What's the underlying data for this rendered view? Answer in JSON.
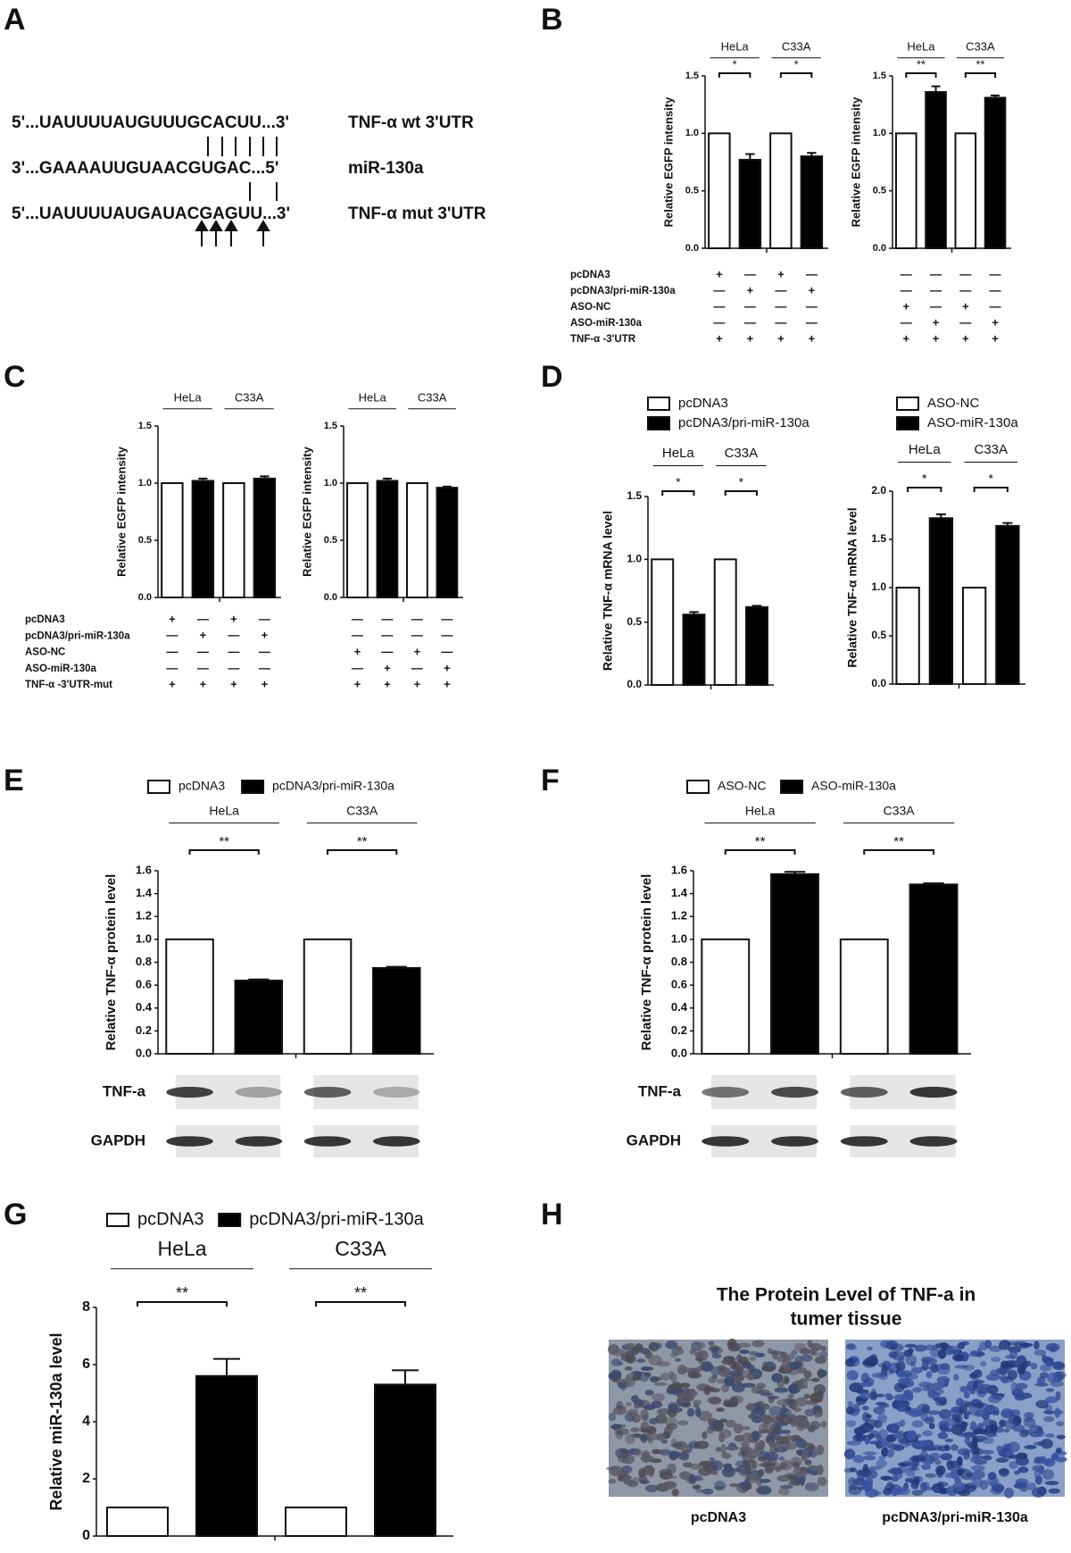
{
  "panel_labels": [
    "A",
    "B",
    "C",
    "D",
    "E",
    "F",
    "G",
    "H"
  ],
  "panel_a": {
    "rows": [
      {
        "sequence": "5'...UAUUUUAUGUUUGCACUU...3'",
        "label": "TNF-α wt 3'UTR"
      },
      {
        "sequence": "3'...GAAAAUUGUAACGUGAC...5'",
        "label": "miR-130a"
      },
      {
        "sequence": "5'...UAUUUUAUGAUACGAGUU...3'",
        "label": "TNF-α mut 3'UTR"
      }
    ]
  },
  "chart_data": [
    {
      "type": "bar",
      "ylabel": "Relative EGFP intensity",
      "groups": [
        "HeLa",
        "C33A"
      ],
      "series": [
        {
          "color": "#ffffff",
          "values": [
            1.0,
            1.0
          ]
        },
        {
          "color": "#000000",
          "values": [
            0.77,
            0.8
          ],
          "errors": [
            0.05,
            0.03
          ]
        }
      ],
      "sig": [
        "*",
        "*"
      ],
      "ylim": [
        0,
        1.5
      ],
      "yticks": [
        {
          "value": 0,
          "label": "0.0"
        },
        {
          "value": 0.5,
          "label": "0.5"
        },
        {
          "value": 1,
          "label": "1.0"
        },
        {
          "value": 1.5,
          "label": "1.5"
        }
      ],
      "condition_labels": [
        "pcDNA3",
        "pcDNA3/pri-miR-130a",
        "ASO-NC",
        "ASO-miR-130a",
        "TNF-α -3'UTR"
      ],
      "conditions": [
        [
          "+",
          "—",
          "+",
          "—"
        ],
        [
          "—",
          "+",
          "—",
          "+"
        ],
        [
          "—",
          "—",
          "—",
          "—"
        ],
        [
          "—",
          "—",
          "—",
          "—"
        ],
        [
          "+",
          "+",
          "+",
          "+"
        ]
      ]
    },
    {
      "type": "bar",
      "ylabel": "Relative EGFP intensity",
      "groups": [
        "HeLa",
        "C33A"
      ],
      "series": [
        {
          "color": "#ffffff",
          "values": [
            1.0,
            1.0
          ]
        },
        {
          "color": "#000000",
          "values": [
            1.36,
            1.31
          ],
          "errors": [
            0.05,
            0.02
          ]
        }
      ],
      "sig": [
        "**",
        "**"
      ],
      "ylim": [
        0,
        1.5
      ],
      "yticks": [
        {
          "value": 0,
          "label": "0.0"
        },
        {
          "value": 0.5,
          "label": "0.5"
        },
        {
          "value": 1,
          "label": "1.0"
        },
        {
          "value": 1.5,
          "label": "1.5"
        }
      ],
      "conditions": [
        [
          "—",
          "—",
          "—",
          "—"
        ],
        [
          "—",
          "—",
          "—",
          "—"
        ],
        [
          "+",
          "—",
          "+",
          "—"
        ],
        [
          "—",
          "+",
          "—",
          "+"
        ],
        [
          "+",
          "+",
          "+",
          "+"
        ]
      ]
    },
    {
      "type": "bar",
      "ylabel": "Relative EGFP intensity",
      "groups": [
        "HeLa",
        "C33A"
      ],
      "series": [
        {
          "color": "#ffffff",
          "values": [
            1.0,
            1.0
          ]
        },
        {
          "color": "#000000",
          "values": [
            1.02,
            1.04
          ],
          "errors": [
            0.02,
            0.02
          ]
        }
      ],
      "ylim": [
        0,
        1.5
      ],
      "yticks": [
        {
          "value": 0,
          "label": "0.0"
        },
        {
          "value": 0.5,
          "label": "0.5"
        },
        {
          "value": 1,
          "label": "1.0"
        },
        {
          "value": 1.5,
          "label": "1.5"
        }
      ],
      "condition_labels": [
        "pcDNA3",
        "pcDNA3/pri-miR-130a",
        "ASO-NC",
        "ASO-miR-130a",
        "TNF-α -3'UTR-mut"
      ],
      "conditions": [
        [
          "+",
          "—",
          "+",
          "—"
        ],
        [
          "—",
          "+",
          "—",
          "+"
        ],
        [
          "—",
          "—",
          "—",
          "—"
        ],
        [
          "—",
          "—",
          "—",
          "—"
        ],
        [
          "+",
          "+",
          "+",
          "+"
        ]
      ]
    },
    {
      "type": "bar",
      "ylabel": "Relative EGFP intensity",
      "groups": [
        "HeLa",
        "C33A"
      ],
      "series": [
        {
          "color": "#ffffff",
          "values": [
            1.0,
            1.0
          ]
        },
        {
          "color": "#000000",
          "values": [
            1.02,
            0.96
          ],
          "errors": [
            0.02,
            0.01
          ]
        }
      ],
      "ylim": [
        0,
        1.5
      ],
      "yticks": [
        {
          "value": 0,
          "label": "0.0"
        },
        {
          "value": 0.5,
          "label": "0.5"
        },
        {
          "value": 1,
          "label": "1.0"
        },
        {
          "value": 1.5,
          "label": "1.5"
        }
      ],
      "conditions": [
        [
          "—",
          "—",
          "—",
          "—"
        ],
        [
          "—",
          "—",
          "—",
          "—"
        ],
        [
          "+",
          "—",
          "+",
          "—"
        ],
        [
          "—",
          "+",
          "—",
          "+"
        ],
        [
          "+",
          "+",
          "+",
          "+"
        ]
      ]
    },
    {
      "type": "bar",
      "ylabel": "Relative TNF-α  mRNA level",
      "groups": [
        "HeLa",
        "C33A"
      ],
      "series": [
        {
          "name": "pcDNA3",
          "color": "#ffffff",
          "values": [
            1.0,
            1.0
          ]
        },
        {
          "name": "pcDNA3/pri-miR-130a",
          "color": "#000000",
          "values": [
            0.56,
            0.62
          ],
          "errors": [
            0.02,
            0.01
          ]
        }
      ],
      "sig": [
        "*",
        "*"
      ],
      "ylim": [
        0,
        1.5
      ],
      "legend": "top-left-stacked",
      "yticks": [
        {
          "value": 0,
          "label": "0.0"
        },
        {
          "value": 0.5,
          "label": "0.5"
        },
        {
          "value": 1,
          "label": "1.0"
        },
        {
          "value": 1.5,
          "label": "1.5"
        }
      ]
    },
    {
      "type": "bar",
      "ylabel": "Relative TNF-α  mRNA level",
      "groups": [
        "HeLa",
        "C33A"
      ],
      "series": [
        {
          "name": "ASO-NC",
          "color": "#ffffff",
          "values": [
            1.0,
            1.0
          ]
        },
        {
          "name": "ASO-miR-130a",
          "color": "#000000",
          "values": [
            1.72,
            1.64
          ],
          "errors": [
            0.04,
            0.03
          ]
        }
      ],
      "sig": [
        "*",
        "*"
      ],
      "ylim": [
        0,
        2.0
      ],
      "legend": "top-left-stacked",
      "yticks": [
        {
          "value": 0,
          "label": "0.0"
        },
        {
          "value": 0.5,
          "label": "0.5"
        },
        {
          "value": 1,
          "label": "1.0"
        },
        {
          "value": 1.5,
          "label": "1.5"
        },
        {
          "value": 2,
          "label": "2.0"
        }
      ]
    },
    {
      "type": "bar",
      "ylabel": "Relative TNF-α  protein level",
      "groups": [
        "HeLa",
        "C33A"
      ],
      "series": [
        {
          "name": "pcDNA3",
          "color": "#ffffff",
          "values": [
            1.0,
            1.0
          ]
        },
        {
          "name": "pcDNA3/pri-miR-130a",
          "color": "#000000",
          "values": [
            0.64,
            0.75
          ],
          "errors": [
            0.01,
            0.01
          ]
        }
      ],
      "sig": [
        "**",
        "**"
      ],
      "ylim": [
        0,
        1.6
      ],
      "legend": "top",
      "yticks": [
        {
          "value": 0,
          "label": "0.0"
        },
        {
          "value": 0.2,
          "label": "0.2"
        },
        {
          "value": 0.4,
          "label": "0.4"
        },
        {
          "value": 0.6,
          "label": "0.6"
        },
        {
          "value": 0.8,
          "label": "0.8"
        },
        {
          "value": 1,
          "label": "1.0"
        },
        {
          "value": 1.2,
          "label": "1.2"
        },
        {
          "value": 1.4,
          "label": "1.4"
        },
        {
          "value": 1.6,
          "label": "1.6"
        }
      ],
      "blot_labels": [
        "TNF-a",
        "GAPDH"
      ]
    },
    {
      "type": "bar",
      "ylabel": "Relative TNF-α  protein level",
      "groups": [
        "HeLa",
        "C33A"
      ],
      "series": [
        {
          "name": "ASO-NC",
          "color": "#ffffff",
          "values": [
            1.0,
            1.0
          ]
        },
        {
          "name": "ASO-miR-130a",
          "color": "#000000",
          "values": [
            1.57,
            1.48
          ],
          "errors": [
            0.02,
            0.01
          ]
        }
      ],
      "sig": [
        "**",
        "**"
      ],
      "ylim": [
        0,
        1.6
      ],
      "legend": "top",
      "yticks": [
        {
          "value": 0,
          "label": "0.0"
        },
        {
          "value": 0.2,
          "label": "0.2"
        },
        {
          "value": 0.4,
          "label": "0.4"
        },
        {
          "value": 0.6,
          "label": "0.6"
        },
        {
          "value": 0.8,
          "label": "0.8"
        },
        {
          "value": 1,
          "label": "1.0"
        },
        {
          "value": 1.2,
          "label": "1.2"
        },
        {
          "value": 1.4,
          "label": "1.4"
        },
        {
          "value": 1.6,
          "label": "1.6"
        }
      ],
      "blot_labels": [
        "TNF-a",
        "GAPDH"
      ]
    },
    {
      "type": "bar",
      "ylabel": "Relative miR-130a level",
      "groups": [
        "HeLa",
        "C33A"
      ],
      "series": [
        {
          "name": "pcDNA3",
          "color": "#ffffff",
          "values": [
            1.0,
            1.0
          ]
        },
        {
          "name": "pcDNA3/pri-miR-130a",
          "color": "#000000",
          "values": [
            5.6,
            5.3
          ],
          "errors": [
            0.6,
            0.5
          ]
        }
      ],
      "sig": [
        "**",
        "**"
      ],
      "ylim": [
        0,
        8
      ],
      "legend": "top",
      "yticks": [
        0,
        2,
        4,
        6,
        8
      ]
    }
  ],
  "panel_h": {
    "title_lines": [
      "The Protein Level of TNF-a in",
      "tumer tissue"
    ],
    "image_labels": [
      "pcDNA3",
      "pcDNA3/pri-miR-130a"
    ]
  }
}
